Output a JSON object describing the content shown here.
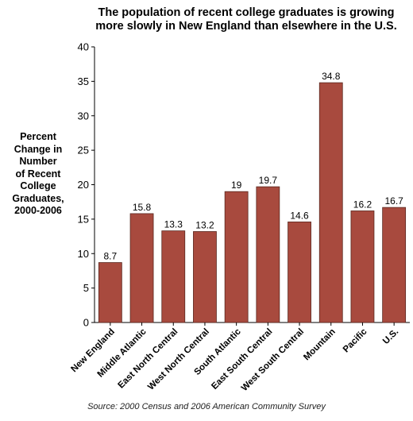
{
  "chart_data": {
    "type": "bar",
    "title_lines": [
      "The population of recent college graduates is growing",
      "more slowly in New England than elsewhere in the U.S."
    ],
    "ylabel_lines": [
      "Percent",
      "Change in",
      "Number",
      "of Recent",
      "College",
      "Graduates,",
      "2000-2006"
    ],
    "xlabel": "",
    "categories": [
      "New England",
      "Middle Atlantic",
      "East North Central",
      "West North Central",
      "South Atlantic",
      "East South Central",
      "West South Central",
      "Mountain",
      "Pacific",
      "U.S."
    ],
    "values": [
      8.7,
      15.8,
      13.3,
      13.2,
      19,
      19.7,
      14.6,
      34.8,
      16.2,
      16.7
    ],
    "value_labels": [
      "8.7",
      "15.8",
      "13.3",
      "13.2",
      "19",
      "19.7",
      "14.6",
      "34.8",
      "16.2",
      "16.7"
    ],
    "ylim": [
      0,
      40
    ],
    "yticks": [
      0,
      5,
      10,
      15,
      20,
      25,
      30,
      35,
      40
    ],
    "grid": false,
    "bar_color": "#a84a3e",
    "bar_edge_color": "#5a2820"
  },
  "source_text": "Source: 2000 Census and 2006 American Community Survey"
}
